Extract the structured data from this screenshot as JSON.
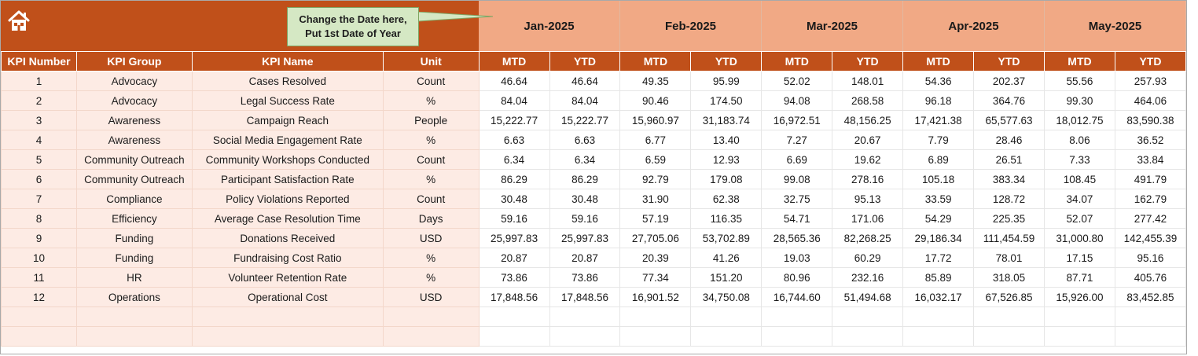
{
  "callout": {
    "line1": "Change the Date here,",
    "line2": "Put 1st Date of Year"
  },
  "icons": {
    "home": "home-icon"
  },
  "colors": {
    "header_orange": "#c0501a",
    "month_header": "#f1a985",
    "left_rows": "#fdebe4",
    "callout_fill": "#d5e8c4"
  },
  "months": [
    "Jan-2025",
    "Feb-2025",
    "Mar-2025",
    "Apr-2025",
    "May-2025"
  ],
  "columns": {
    "kpi_number": "KPI Number",
    "kpi_group": "KPI Group",
    "kpi_name": "KPI Name",
    "unit": "Unit",
    "mtd": "MTD",
    "ytd": "YTD"
  },
  "rows": [
    {
      "num": "1",
      "group": "Advocacy",
      "name": "Cases Resolved",
      "unit": "Count",
      "vals": [
        "46.64",
        "46.64",
        "49.35",
        "95.99",
        "52.02",
        "148.01",
        "54.36",
        "202.37",
        "55.56",
        "257.93"
      ]
    },
    {
      "num": "2",
      "group": "Advocacy",
      "name": "Legal Success Rate",
      "unit": "%",
      "vals": [
        "84.04",
        "84.04",
        "90.46",
        "174.50",
        "94.08",
        "268.58",
        "96.18",
        "364.76",
        "99.30",
        "464.06"
      ]
    },
    {
      "num": "3",
      "group": "Awareness",
      "name": "Campaign Reach",
      "unit": "People",
      "vals": [
        "15,222.77",
        "15,222.77",
        "15,960.97",
        "31,183.74",
        "16,972.51",
        "48,156.25",
        "17,421.38",
        "65,577.63",
        "18,012.75",
        "83,590.38"
      ]
    },
    {
      "num": "4",
      "group": "Awareness",
      "name": "Social Media Engagement Rate",
      "unit": "%",
      "vals": [
        "6.63",
        "6.63",
        "6.77",
        "13.40",
        "7.27",
        "20.67",
        "7.79",
        "28.46",
        "8.06",
        "36.52"
      ]
    },
    {
      "num": "5",
      "group": "Community Outreach",
      "name": "Community Workshops Conducted",
      "unit": "Count",
      "vals": [
        "6.34",
        "6.34",
        "6.59",
        "12.93",
        "6.69",
        "19.62",
        "6.89",
        "26.51",
        "7.33",
        "33.84"
      ]
    },
    {
      "num": "6",
      "group": "Community Outreach",
      "name": "Participant Satisfaction Rate",
      "unit": "%",
      "vals": [
        "86.29",
        "86.29",
        "92.79",
        "179.08",
        "99.08",
        "278.16",
        "105.18",
        "383.34",
        "108.45",
        "491.79"
      ]
    },
    {
      "num": "7",
      "group": "Compliance",
      "name": "Policy Violations Reported",
      "unit": "Count",
      "vals": [
        "30.48",
        "30.48",
        "31.90",
        "62.38",
        "32.75",
        "95.13",
        "33.59",
        "128.72",
        "34.07",
        "162.79"
      ]
    },
    {
      "num": "8",
      "group": "Efficiency",
      "name": "Average Case Resolution Time",
      "unit": "Days",
      "vals": [
        "59.16",
        "59.16",
        "57.19",
        "116.35",
        "54.71",
        "171.06",
        "54.29",
        "225.35",
        "52.07",
        "277.42"
      ]
    },
    {
      "num": "9",
      "group": "Funding",
      "name": "Donations Received",
      "unit": "USD",
      "vals": [
        "25,997.83",
        "25,997.83",
        "27,705.06",
        "53,702.89",
        "28,565.36",
        "82,268.25",
        "29,186.34",
        "111,454.59",
        "31,000.80",
        "142,455.39"
      ]
    },
    {
      "num": "10",
      "group": "Funding",
      "name": "Fundraising Cost Ratio",
      "unit": "%",
      "vals": [
        "20.87",
        "20.87",
        "20.39",
        "41.26",
        "19.03",
        "60.29",
        "17.72",
        "78.01",
        "17.15",
        "95.16"
      ]
    },
    {
      "num": "11",
      "group": "HR",
      "name": "Volunteer Retention Rate",
      "unit": "%",
      "vals": [
        "73.86",
        "73.86",
        "77.34",
        "151.20",
        "80.96",
        "232.16",
        "85.89",
        "318.05",
        "87.71",
        "405.76"
      ]
    },
    {
      "num": "12",
      "group": "Operations",
      "name": "Operational Cost",
      "unit": "USD",
      "vals": [
        "17,848.56",
        "17,848.56",
        "16,901.52",
        "34,750.08",
        "16,744.60",
        "51,494.68",
        "16,032.17",
        "67,526.85",
        "15,926.00",
        "83,452.85"
      ]
    }
  ]
}
